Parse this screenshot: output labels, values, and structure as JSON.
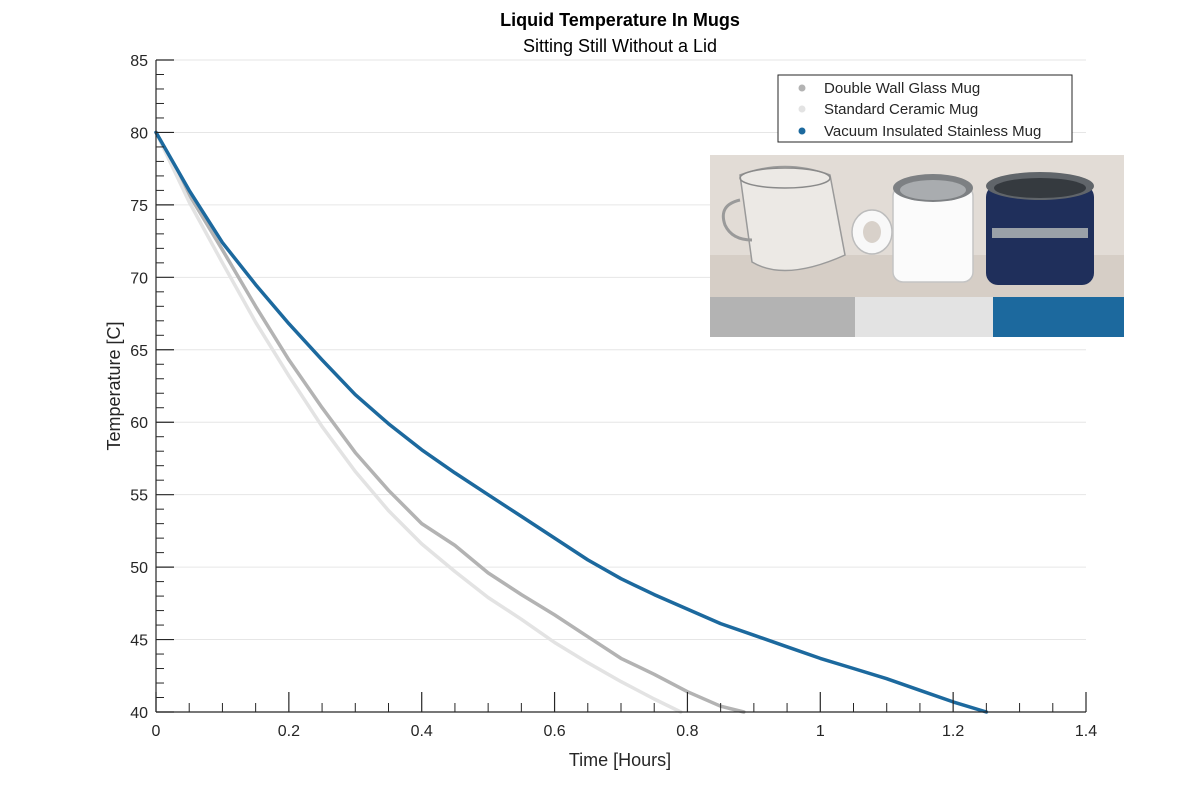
{
  "chart_data": {
    "type": "line",
    "title": "Liquid Temperature In Mugs",
    "subtitle": "Sitting Still Without a Lid",
    "xlabel": "Time [Hours]",
    "ylabel": "Temperature [C]",
    "xlim": [
      0,
      1.4
    ],
    "ylim": [
      40,
      85
    ],
    "xticks": [
      "0",
      "0.2",
      "0.4",
      "0.6",
      "0.8",
      "1",
      "1.2",
      "1.4"
    ],
    "yticks": [
      "40",
      "45",
      "50",
      "55",
      "60",
      "65",
      "70",
      "75",
      "80",
      "85"
    ],
    "grid": "horizontal",
    "legend_position": "top-right",
    "series": [
      {
        "name": "Double Wall Glass Mug",
        "color": "#b3b3b3",
        "x": [
          0,
          0.05,
          0.1,
          0.15,
          0.2,
          0.25,
          0.3,
          0.35,
          0.4,
          0.45,
          0.5,
          0.55,
          0.6,
          0.65,
          0.7,
          0.75,
          0.8,
          0.85,
          0.885
        ],
        "y": [
          80,
          75.7,
          71.9,
          68.0,
          64.3,
          61.0,
          57.9,
          55.3,
          53.0,
          51.5,
          49.6,
          48.1,
          46.7,
          45.2,
          43.7,
          42.6,
          41.4,
          40.4,
          40.0
        ]
      },
      {
        "name": "Standard Ceramic Mug",
        "color": "#e3e3e3",
        "x": [
          0,
          0.05,
          0.1,
          0.15,
          0.2,
          0.25,
          0.3,
          0.35,
          0.4,
          0.45,
          0.5,
          0.55,
          0.6,
          0.65,
          0.7,
          0.75,
          0.79
        ],
        "y": [
          80,
          75.2,
          71.0,
          66.9,
          63.2,
          59.7,
          56.6,
          53.9,
          51.6,
          49.7,
          47.9,
          46.4,
          44.8,
          43.4,
          42.1,
          40.9,
          40.0
        ]
      },
      {
        "name": "Vacuum Insulated Stainless Mug",
        "color": "#1c699e",
        "x": [
          0,
          0.05,
          0.1,
          0.15,
          0.2,
          0.25,
          0.3,
          0.35,
          0.4,
          0.45,
          0.5,
          0.55,
          0.6,
          0.65,
          0.7,
          0.75,
          0.8,
          0.85,
          0.9,
          0.95,
          1.0,
          1.05,
          1.1,
          1.15,
          1.2,
          1.25
        ],
        "y": [
          80,
          76.0,
          72.4,
          69.5,
          66.8,
          64.3,
          61.9,
          59.9,
          58.1,
          56.5,
          55.0,
          53.5,
          52.0,
          50.5,
          49.2,
          48.1,
          47.1,
          46.1,
          45.3,
          44.5,
          43.7,
          43.0,
          42.3,
          41.5,
          40.7,
          40.0
        ]
      }
    ]
  },
  "inset": {
    "label": "Photo of three mugs: glass, ceramic, stainless",
    "swatch_colors": [
      "#b3b3b3",
      "#e3e3e3",
      "#1c699e"
    ]
  }
}
